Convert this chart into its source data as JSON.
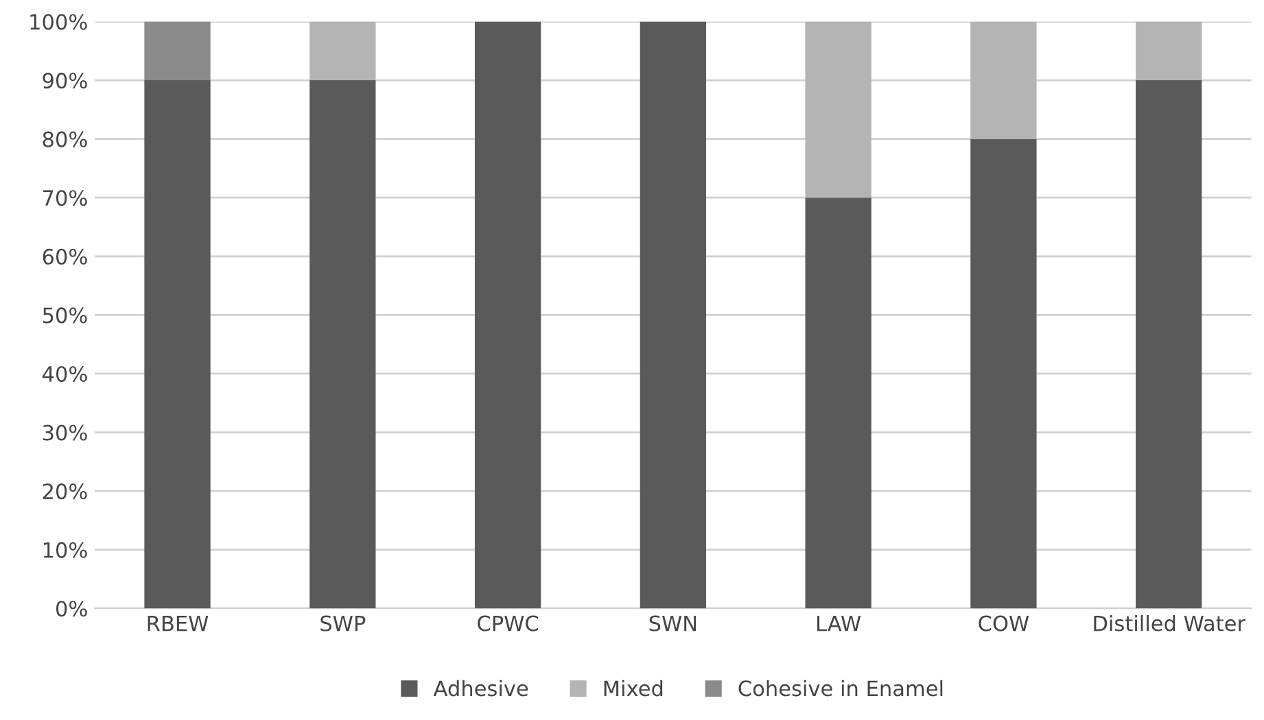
{
  "chart_data": {
    "type": "bar",
    "stacked": true,
    "categories": [
      "RBEW",
      "SWP",
      "CPWC",
      "SWN",
      "LAW",
      "COW",
      "Distilled Water"
    ],
    "series": [
      {
        "name": "Adhesive",
        "color": "#5a5a5a",
        "values": [
          90,
          90,
          100,
          100,
          70,
          80,
          90
        ]
      },
      {
        "name": "Mixed",
        "color": "#b4b4b4",
        "values": [
          0,
          10,
          0,
          0,
          30,
          20,
          10
        ]
      },
      {
        "name": "Cohesive in Enamel",
        "color": "#8a8a8a",
        "values": [
          10,
          0,
          0,
          0,
          0,
          0,
          0
        ]
      }
    ],
    "ylim": [
      0,
      100
    ],
    "yticks": [
      {
        "value": 0,
        "label": "0%"
      },
      {
        "value": 10,
        "label": "10%"
      },
      {
        "value": 20,
        "label": "20%"
      },
      {
        "value": 30,
        "label": "30%"
      },
      {
        "value": 40,
        "label": "40%"
      },
      {
        "value": 50,
        "label": "50%"
      },
      {
        "value": 60,
        "label": "60%"
      },
      {
        "value": 70,
        "label": "70%"
      },
      {
        "value": 80,
        "label": "80%"
      },
      {
        "value": 90,
        "label": "90%"
      },
      {
        "value": 100,
        "label": "100%"
      }
    ],
    "grid": "y",
    "legend": "bottom"
  }
}
